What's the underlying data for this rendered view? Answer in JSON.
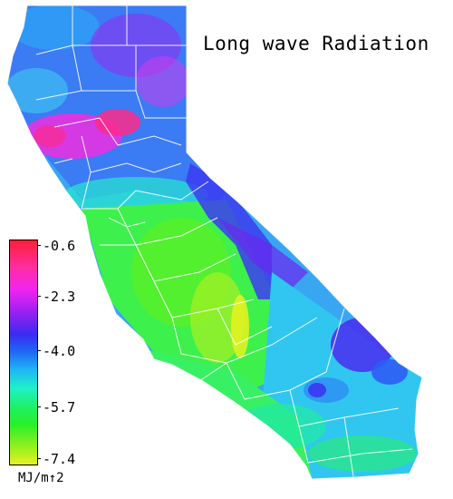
{
  "map": {
    "title": "Long wave Radiation"
  },
  "legend": {
    "unit": "MJ/m↑2",
    "ticks": [
      "-0.6",
      "-2.3",
      "-4.0",
      "-5.7",
      "-7.4"
    ],
    "colors": [
      "#ff1f3a",
      "#f024f0",
      "#1f6af5",
      "#1ff06a",
      "#e6f21f"
    ]
  }
}
